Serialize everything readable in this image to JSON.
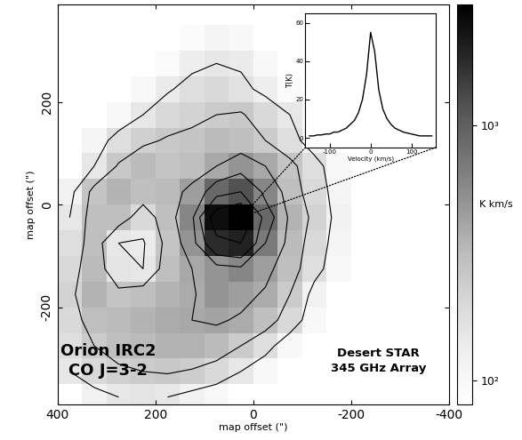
{
  "chart_data": {
    "type": "heatmap",
    "title": "Orion IRC2\nCO J=3-2",
    "annotations": [
      "Desert STAR\n345 GHz Array"
    ],
    "x_label": "map offset (\")",
    "y_label": "map offset (\")",
    "x": [
      375,
      325,
      275,
      225,
      175,
      125,
      75,
      25,
      -25,
      -75,
      -125,
      -175,
      -225,
      -275,
      -325,
      -375
    ],
    "y": [
      -375,
      -325,
      -275,
      -225,
      -175,
      -125,
      -75,
      -25,
      25,
      75,
      125,
      175,
      225,
      275,
      325,
      375
    ],
    "cells": [
      [
        null,
        120,
        150,
        160,
        150,
        120,
        100,
        null,
        null,
        null,
        null,
        null,
        null,
        null,
        null,
        null
      ],
      [
        150,
        200,
        230,
        250,
        260,
        240,
        200,
        150,
        100,
        null,
        null,
        null,
        null,
        null,
        null,
        null
      ],
      [
        180,
        250,
        300,
        320,
        350,
        350,
        320,
        250,
        180,
        100,
        null,
        null,
        null,
        null,
        null,
        null
      ],
      [
        200,
        300,
        320,
        350,
        380,
        400,
        420,
        380,
        300,
        200,
        100,
        null,
        null,
        null,
        null,
        null
      ],
      [
        220,
        350,
        280,
        300,
        350,
        380,
        500,
        450,
        380,
        250,
        120,
        null,
        null,
        null,
        null,
        null
      ],
      [
        200,
        320,
        160,
        150,
        300,
        400,
        500,
        600,
        450,
        300,
        180,
        100,
        null,
        null,
        null,
        null
      ],
      [
        180,
        300,
        150,
        140,
        280,
        500,
        1800,
        2000,
        700,
        320,
        200,
        110,
        null,
        null,
        null,
        null
      ],
      [
        150,
        300,
        300,
        200,
        300,
        600,
        2500,
        3000,
        900,
        350,
        220,
        120,
        null,
        null,
        null,
        null
      ],
      [
        120,
        280,
        350,
        300,
        320,
        450,
        900,
        1200,
        600,
        300,
        200,
        110,
        null,
        null,
        null,
        null
      ],
      [
        null,
        150,
        260,
        320,
        280,
        300,
        400,
        500,
        400,
        280,
        180,
        100,
        null,
        null,
        null,
        null
      ],
      [
        null,
        110,
        180,
        230,
        260,
        280,
        320,
        300,
        250,
        180,
        110,
        null,
        null,
        null,
        null,
        null
      ],
      [
        null,
        null,
        100,
        150,
        200,
        220,
        250,
        260,
        200,
        150,
        100,
        null,
        null,
        null,
        null,
        null
      ],
      [
        null,
        null,
        null,
        100,
        140,
        180,
        200,
        170,
        130,
        90,
        null,
        null,
        null,
        null,
        null,
        null
      ],
      [
        null,
        null,
        null,
        null,
        90,
        130,
        150,
        140,
        100,
        null,
        null,
        null,
        null,
        null,
        null,
        null
      ],
      [
        null,
        null,
        null,
        null,
        null,
        90,
        110,
        100,
        null,
        null,
        null,
        null,
        null,
        null,
        null,
        null
      ],
      [
        null,
        null,
        null,
        null,
        null,
        null,
        null,
        null,
        null,
        null,
        null,
        null,
        null,
        null,
        null,
        null
      ]
    ],
    "xlim": [
      400,
      -400
    ],
    "xticks": [
      400,
      200,
      0,
      -200,
      -400
    ],
    "ylim": [
      -390,
      390
    ],
    "yticks": [
      -200,
      0,
      200
    ],
    "contour_levels": [
      150,
      250,
      400,
      700,
      1200,
      2000
    ],
    "colorbar": {
      "label": "K km/s",
      "log": true,
      "range": [
        80,
        3000
      ],
      "ticks": [
        {
          "value": 100,
          "label": "10²"
        },
        {
          "value": 1000,
          "label": "10³"
        }
      ]
    },
    "inset": {
      "type": "line",
      "x_label": "Velocity (km/s)",
      "y_label": "T(K)",
      "color": "#000000",
      "x": [
        -150,
        -140,
        -130,
        -120,
        -110,
        -100,
        -90,
        -80,
        -70,
        -60,
        -50,
        -40,
        -30,
        -20,
        -10,
        0,
        10,
        20,
        30,
        40,
        50,
        60,
        70,
        80,
        90,
        100,
        110,
        120,
        130,
        140,
        150
      ],
      "values": [
        1,
        1,
        1.5,
        1.5,
        2,
        2,
        3,
        3,
        4,
        5,
        7,
        9,
        13,
        20,
        33,
        55,
        45,
        25,
        15,
        10,
        7,
        5,
        4,
        3,
        2.5,
        2,
        1.5,
        1,
        1,
        1,
        1
      ],
      "xlim": [
        -160,
        160
      ],
      "xticks": [
        -100,
        0,
        100
      ],
      "ylim": [
        -5,
        65
      ],
      "yticks": [
        0,
        20,
        40,
        60
      ]
    }
  }
}
